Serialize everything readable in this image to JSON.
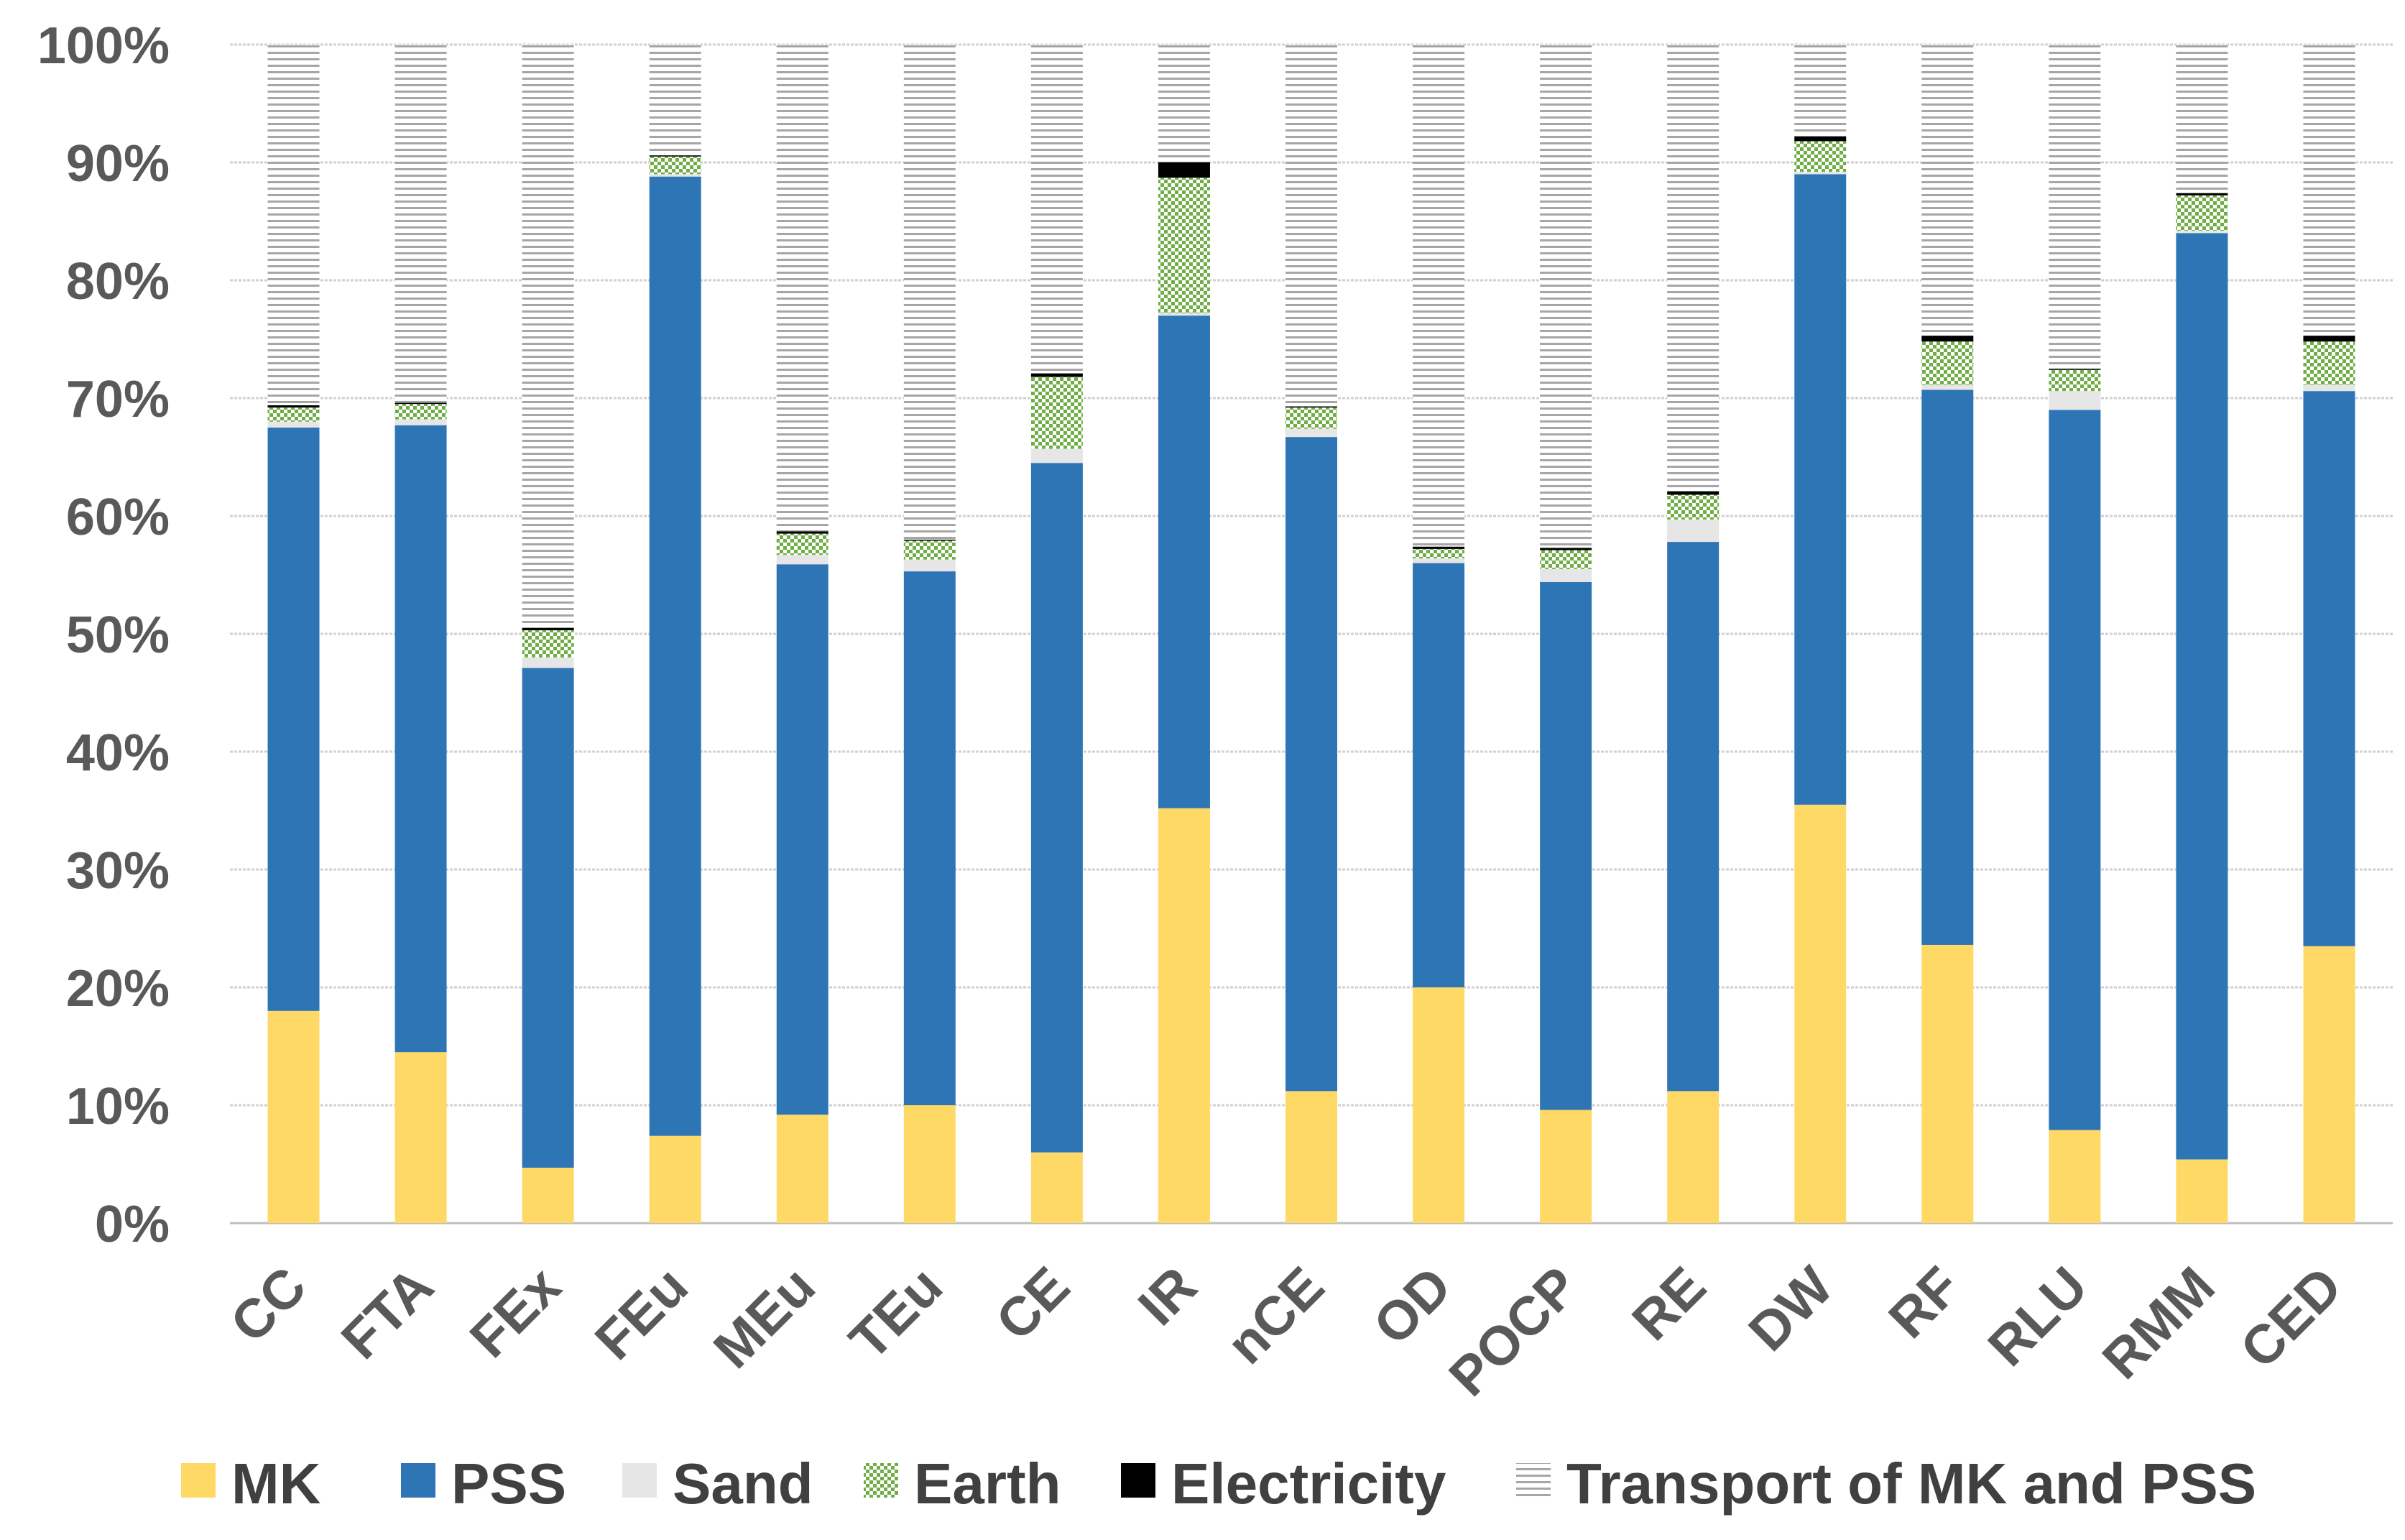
{
  "chart_data": {
    "type": "bar",
    "stacked": true,
    "title": "",
    "xlabel": "",
    "ylabel": "",
    "ylim": [
      0,
      100
    ],
    "y_ticks": [
      "0%",
      "10%",
      "20%",
      "30%",
      "40%",
      "50%",
      "60%",
      "70%",
      "80%",
      "90%",
      "100%"
    ],
    "grid": true,
    "legend_position": "bottom",
    "categories": [
      "CC",
      "FTA",
      "FEx",
      "FEu",
      "MEu",
      "TEu",
      "CE",
      "IR",
      "nCE",
      "OD",
      "POCP",
      "RE",
      "DW",
      "RF",
      "RLU",
      "RMM",
      "CED"
    ],
    "series": [
      {
        "name": "MK",
        "color": "#FFD966",
        "pattern": "solid",
        "values": [
          18.0,
          14.5,
          4.7,
          7.4,
          9.2,
          10.0,
          6.0,
          35.2,
          11.2,
          20.0,
          9.6,
          11.2,
          35.5,
          23.6,
          7.9,
          5.4,
          23.5
        ]
      },
      {
        "name": "PSS",
        "color": "#2E75B6",
        "pattern": "solid",
        "values": [
          49.5,
          53.2,
          42.4,
          81.4,
          46.7,
          45.3,
          58.5,
          41.8,
          55.5,
          36.0,
          44.8,
          46.6,
          53.5,
          47.1,
          61.1,
          78.6,
          47.1
        ]
      },
      {
        "name": "Sand",
        "color": "#E7E6E6",
        "pattern": "solid",
        "values": [
          0.5,
          0.5,
          0.9,
          0.2,
          0.8,
          1.0,
          1.2,
          0.2,
          0.7,
          0.4,
          1.1,
          1.9,
          0.2,
          0.4,
          1.6,
          0.2,
          0.5
        ]
      },
      {
        "name": "Earth",
        "color": "#70AD47",
        "pattern": "checker",
        "values": [
          1.2,
          1.3,
          2.3,
          1.5,
          1.8,
          1.6,
          6.1,
          11.5,
          1.8,
          0.8,
          1.6,
          2.1,
          2.6,
          3.7,
          1.8,
          3.0,
          3.7
        ]
      },
      {
        "name": "Electricity",
        "color": "#000000",
        "pattern": "solid",
        "values": [
          0.2,
          0.1,
          0.2,
          0.1,
          0.2,
          0.1,
          0.3,
          1.3,
          0.1,
          0.2,
          0.2,
          0.3,
          0.4,
          0.5,
          0.1,
          0.2,
          0.5
        ]
      },
      {
        "name": "Transport of MK and PSS",
        "color": "#A6A6A6",
        "pattern": "hlines",
        "values": [
          30.6,
          30.4,
          49.5,
          9.4,
          41.3,
          42.0,
          27.9,
          10.0,
          30.7,
          42.6,
          42.7,
          37.9,
          7.8,
          24.7,
          27.5,
          12.6,
          24.7
        ]
      }
    ]
  }
}
